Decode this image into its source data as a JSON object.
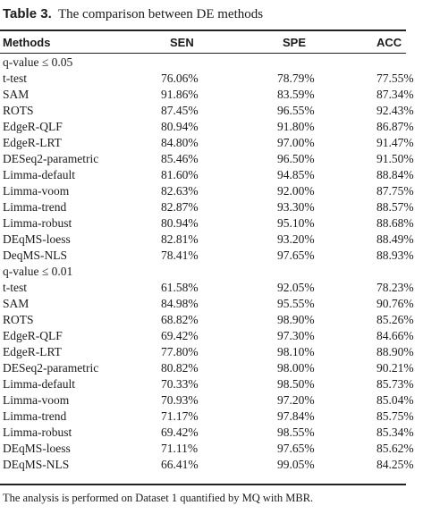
{
  "caption": {
    "label": "Table 3.",
    "text": "The comparison between DE methods"
  },
  "columns": [
    "Methods",
    "SEN",
    "SPE",
    "ACC"
  ],
  "sections": [
    {
      "heading": "q-value ≤ 0.05",
      "rows": [
        [
          "t-test",
          "76.06%",
          "78.79%",
          "77.55%"
        ],
        [
          "SAM",
          "91.86%",
          "83.59%",
          "87.34%"
        ],
        [
          "ROTS",
          "87.45%",
          "96.55%",
          "92.43%"
        ],
        [
          "EdgeR-QLF",
          "80.94%",
          "91.80%",
          "86.87%"
        ],
        [
          "EdgeR-LRT",
          "84.80%",
          "97.00%",
          "91.47%"
        ],
        [
          "DESeq2-parametric",
          "85.46%",
          "96.50%",
          "91.50%"
        ],
        [
          "Limma-default",
          "81.60%",
          "94.85%",
          "88.84%"
        ],
        [
          "Limma-voom",
          "82.63%",
          "92.00%",
          "87.75%"
        ],
        [
          "Limma-trend",
          "82.87%",
          "93.30%",
          "88.57%"
        ],
        [
          "Limma-robust",
          "80.94%",
          "95.10%",
          "88.68%"
        ],
        [
          "DEqMS-loess",
          "82.81%",
          "93.20%",
          "88.49%"
        ],
        [
          "DeqMS-NLS",
          "78.41%",
          "97.65%",
          "88.93%"
        ]
      ]
    },
    {
      "heading": "q-value ≤ 0.01",
      "rows": [
        [
          "t-test",
          "61.58%",
          "92.05%",
          "78.23%"
        ],
        [
          "SAM",
          "84.98%",
          "95.55%",
          "90.76%"
        ],
        [
          "ROTS",
          "68.82%",
          "98.90%",
          "85.26%"
        ],
        [
          "EdgeR-QLF",
          "69.42%",
          "97.30%",
          "84.66%"
        ],
        [
          "EdgeR-LRT",
          "77.80%",
          "98.10%",
          "88.90%"
        ],
        [
          "DESeq2-parametric",
          "80.82%",
          "98.00%",
          "90.21%"
        ],
        [
          "Limma-default",
          "70.33%",
          "98.50%",
          "85.73%"
        ],
        [
          "Limma-voom",
          "70.93%",
          "97.20%",
          "85.04%"
        ],
        [
          "Limma-trend",
          "71.17%",
          "97.84%",
          "85.75%"
        ],
        [
          "Limma-robust",
          "69.42%",
          "98.55%",
          "85.34%"
        ],
        [
          "DEqMS-loess",
          "71.11%",
          "97.65%",
          "85.62%"
        ],
        [
          "DEqMS-NLS",
          "66.41%",
          "99.05%",
          "84.25%"
        ]
      ]
    }
  ],
  "footnote": "The analysis is performed on Dataset 1 quantified by MQ with MBR."
}
